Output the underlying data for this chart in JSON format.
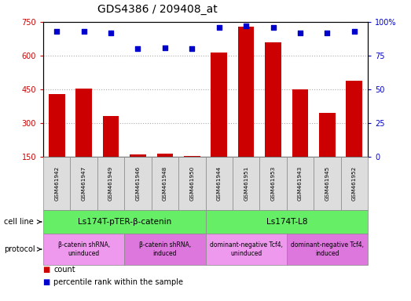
{
  "title": "GDS4386 / 209408_at",
  "samples": [
    "GSM461942",
    "GSM461947",
    "GSM461949",
    "GSM461946",
    "GSM461948",
    "GSM461950",
    "GSM461944",
    "GSM461951",
    "GSM461953",
    "GSM461943",
    "GSM461945",
    "GSM461952"
  ],
  "counts": [
    430,
    453,
    330,
    160,
    163,
    152,
    615,
    730,
    660,
    450,
    345,
    490
  ],
  "percentile_ranks": [
    93,
    93,
    92,
    80,
    81,
    80,
    96,
    97,
    96,
    92,
    92,
    93
  ],
  "ylim_left": [
    150,
    750
  ],
  "ylim_right": [
    0,
    100
  ],
  "yticks_left": [
    150,
    300,
    450,
    600,
    750
  ],
  "yticks_right": [
    0,
    25,
    50,
    75,
    100
  ],
  "bar_color": "#cc0000",
  "dot_color": "#0000cc",
  "cell_line_groups": [
    {
      "label": "Ls174T-pTER-β-catenin",
      "start": 0,
      "end": 6,
      "color": "#66ee66"
    },
    {
      "label": "Ls174T-L8",
      "start": 6,
      "end": 12,
      "color": "#66ee66"
    }
  ],
  "protocol_groups": [
    {
      "label": "β-catenin shRNA,\nuninduced",
      "start": 0,
      "end": 3,
      "color": "#ee99ee"
    },
    {
      "label": "β-catenin shRNA,\ninduced",
      "start": 3,
      "end": 6,
      "color": "#dd77dd"
    },
    {
      "label": "dominant-negative Tcf4,\nuninduced",
      "start": 6,
      "end": 9,
      "color": "#ee99ee"
    },
    {
      "label": "dominant-negative Tcf4,\ninduced",
      "start": 9,
      "end": 12,
      "color": "#dd77dd"
    }
  ],
  "cell_line_row_label": "cell line",
  "protocol_row_label": "protocol",
  "legend_count_label": "count",
  "legend_pct_label": "percentile rank within the sample",
  "bg_color": "#ffffff",
  "grid_color": "#aaaaaa",
  "tick_label_color_left": "#cc0000",
  "tick_label_color_right": "#0000cc"
}
